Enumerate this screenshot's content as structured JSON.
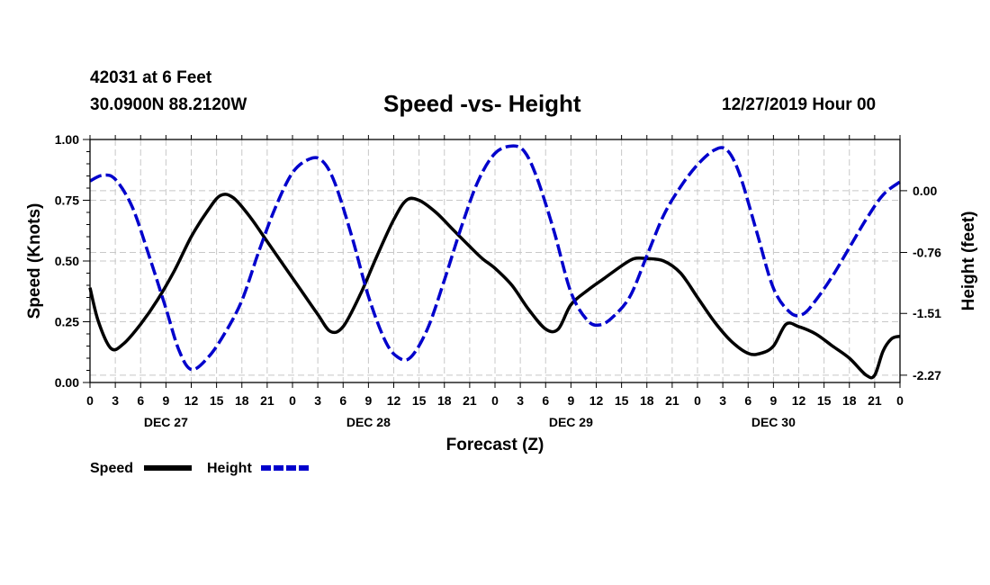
{
  "header": {
    "station": "42031 at 6 Feet",
    "coordinates": "30.0900N 88.2120W",
    "timestamp": "12/27/2019 Hour 00"
  },
  "chart_data": {
    "type": "line",
    "title": "Speed -vs- Height",
    "xlabel": "Forecast (Z)",
    "ylabel": "Speed (Knots)",
    "y2label": "Height (feet)",
    "ylim": [
      0,
      1
    ],
    "y2lim": [
      -2.36,
      0.63
    ],
    "grid": true,
    "legend_position": "bottom-left",
    "x_unit": "hours from 12/27/2019 00Z",
    "x_range": [
      0,
      96
    ],
    "x_tick_labels": [
      "0",
      "3",
      "6",
      "9",
      "12",
      "15",
      "18",
      "21",
      "0",
      "3",
      "6",
      "9",
      "12",
      "15",
      "18",
      "21",
      "0",
      "3",
      "6",
      "9",
      "12",
      "15",
      "18",
      "21",
      "0",
      "3",
      "6",
      "9",
      "12",
      "15",
      "18",
      "21",
      "0"
    ],
    "day_labels": [
      {
        "label": "DEC 27",
        "hour": 9
      },
      {
        "label": "DEC 28",
        "hour": 33
      },
      {
        "label": "DEC 29",
        "hour": 57
      },
      {
        "label": "DEC 30",
        "hour": 81
      }
    ],
    "y_tick_labels": [
      "0.00",
      "0.25",
      "0.50",
      "0.75",
      "1.00"
    ],
    "y_ticks": [
      0,
      0.25,
      0.5,
      0.75,
      1.0
    ],
    "y2_tick_labels": [
      "0.00",
      "-0.76",
      "-1.51",
      "-2.27"
    ],
    "y2_ticks": [
      0.0,
      -0.76,
      -1.51,
      -2.27
    ],
    "series": [
      {
        "name": "Speed",
        "axis": "left",
        "color": "#000000",
        "dash": "solid",
        "x": [
          0,
          1,
          2.5,
          4,
          6,
          8,
          10,
          12,
          14,
          15.5,
          17,
          19,
          21,
          23,
          25,
          27,
          28.5,
          30,
          32,
          34,
          36,
          37.5,
          39,
          41,
          43,
          45,
          46.5,
          48,
          50,
          52,
          54,
          55.5,
          57,
          59,
          61,
          63,
          64.5,
          66,
          68,
          70,
          72,
          74,
          76,
          78,
          79.5,
          81,
          82.5,
          84,
          86,
          88,
          90,
          92,
          93,
          94,
          95,
          96
        ],
        "y": [
          0.39,
          0.25,
          0.14,
          0.16,
          0.24,
          0.34,
          0.46,
          0.6,
          0.71,
          0.77,
          0.76,
          0.68,
          0.58,
          0.48,
          0.38,
          0.28,
          0.21,
          0.23,
          0.36,
          0.52,
          0.67,
          0.75,
          0.75,
          0.7,
          0.63,
          0.56,
          0.51,
          0.47,
          0.4,
          0.3,
          0.22,
          0.22,
          0.32,
          0.38,
          0.43,
          0.48,
          0.51,
          0.51,
          0.5,
          0.45,
          0.35,
          0.25,
          0.17,
          0.12,
          0.12,
          0.15,
          0.24,
          0.23,
          0.2,
          0.15,
          0.1,
          0.03,
          0.03,
          0.13,
          0.18,
          0.19
        ]
      },
      {
        "name": "Height",
        "axis": "right",
        "color": "#0000cc",
        "dash": "dashed",
        "x": [
          0,
          1.5,
          3,
          5,
          7,
          9,
          10.5,
          12,
          14,
          16,
          18,
          20,
          22,
          24,
          26,
          27.5,
          29,
          31,
          33,
          35,
          36.5,
          38,
          40,
          42,
          44,
          46,
          48,
          50,
          51.5,
          53,
          55,
          57,
          59,
          60.5,
          62,
          64,
          66,
          68,
          70,
          72,
          74,
          75.5,
          77,
          79,
          81,
          83,
          84.5,
          86,
          88,
          90,
          92,
          94,
          96
        ],
        "y": [
          0.12,
          0.19,
          0.14,
          -0.2,
          -0.8,
          -1.45,
          -1.95,
          -2.2,
          -2.05,
          -1.75,
          -1.35,
          -0.75,
          -0.2,
          0.22,
          0.39,
          0.37,
          0.1,
          -0.55,
          -1.3,
          -1.85,
          -2.05,
          -2.05,
          -1.7,
          -1.1,
          -0.45,
          0.12,
          0.46,
          0.55,
          0.48,
          0.15,
          -0.5,
          -1.25,
          -1.6,
          -1.65,
          -1.55,
          -1.3,
          -0.8,
          -0.3,
          0.05,
          0.32,
          0.5,
          0.5,
          0.2,
          -0.5,
          -1.2,
          -1.5,
          -1.52,
          -1.35,
          -1.05,
          -0.7,
          -0.35,
          -0.05,
          0.11
        ]
      }
    ]
  },
  "legend": {
    "speed_label": "Speed",
    "height_label": "Height"
  }
}
